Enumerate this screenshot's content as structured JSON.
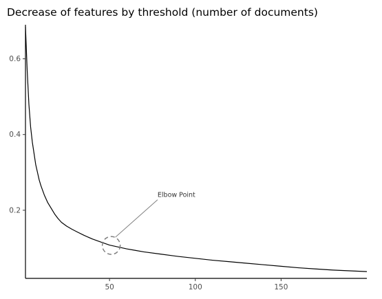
{
  "chart_data": {
    "type": "line",
    "title": "Decrease of features by threshold (number of documents)",
    "xlabel": "",
    "ylabel": "",
    "xlim": [
      1,
      200
    ],
    "ylim": [
      0.02,
      0.69
    ],
    "x_ticks": [
      50,
      100,
      150
    ],
    "y_ticks": [
      0.2,
      0.4,
      0.6
    ],
    "grid": false,
    "legend": "none",
    "line_color": "#000000",
    "series": [
      {
        "x": [
          1,
          2,
          3,
          4,
          5,
          6,
          7,
          8,
          9,
          10,
          12,
          14,
          16,
          18,
          20,
          22,
          25,
          28,
          31,
          35,
          40,
          45,
          50,
          55,
          60,
          65,
          70,
          80,
          90,
          100,
          110,
          120,
          130,
          140,
          150,
          160,
          170,
          180,
          190,
          200
        ],
        "y": [
          0.685,
          0.57,
          0.48,
          0.42,
          0.38,
          0.35,
          0.32,
          0.3,
          0.28,
          0.265,
          0.24,
          0.22,
          0.205,
          0.19,
          0.178,
          0.168,
          0.158,
          0.15,
          0.143,
          0.134,
          0.124,
          0.116,
          0.108,
          0.103,
          0.098,
          0.094,
          0.09,
          0.084,
          0.078,
          0.073,
          0.068,
          0.064,
          0.06,
          0.056,
          0.052,
          0.048,
          0.045,
          0.042,
          0.04,
          0.038
        ]
      }
    ],
    "annotations": [
      {
        "text": "Elbow Point",
        "point": [
          51,
          0.107
        ],
        "text_at": [
          78,
          0.235
        ],
        "marker": "dashed-circle",
        "marker_color": "#808080",
        "arrow_color": "#808080"
      }
    ]
  }
}
